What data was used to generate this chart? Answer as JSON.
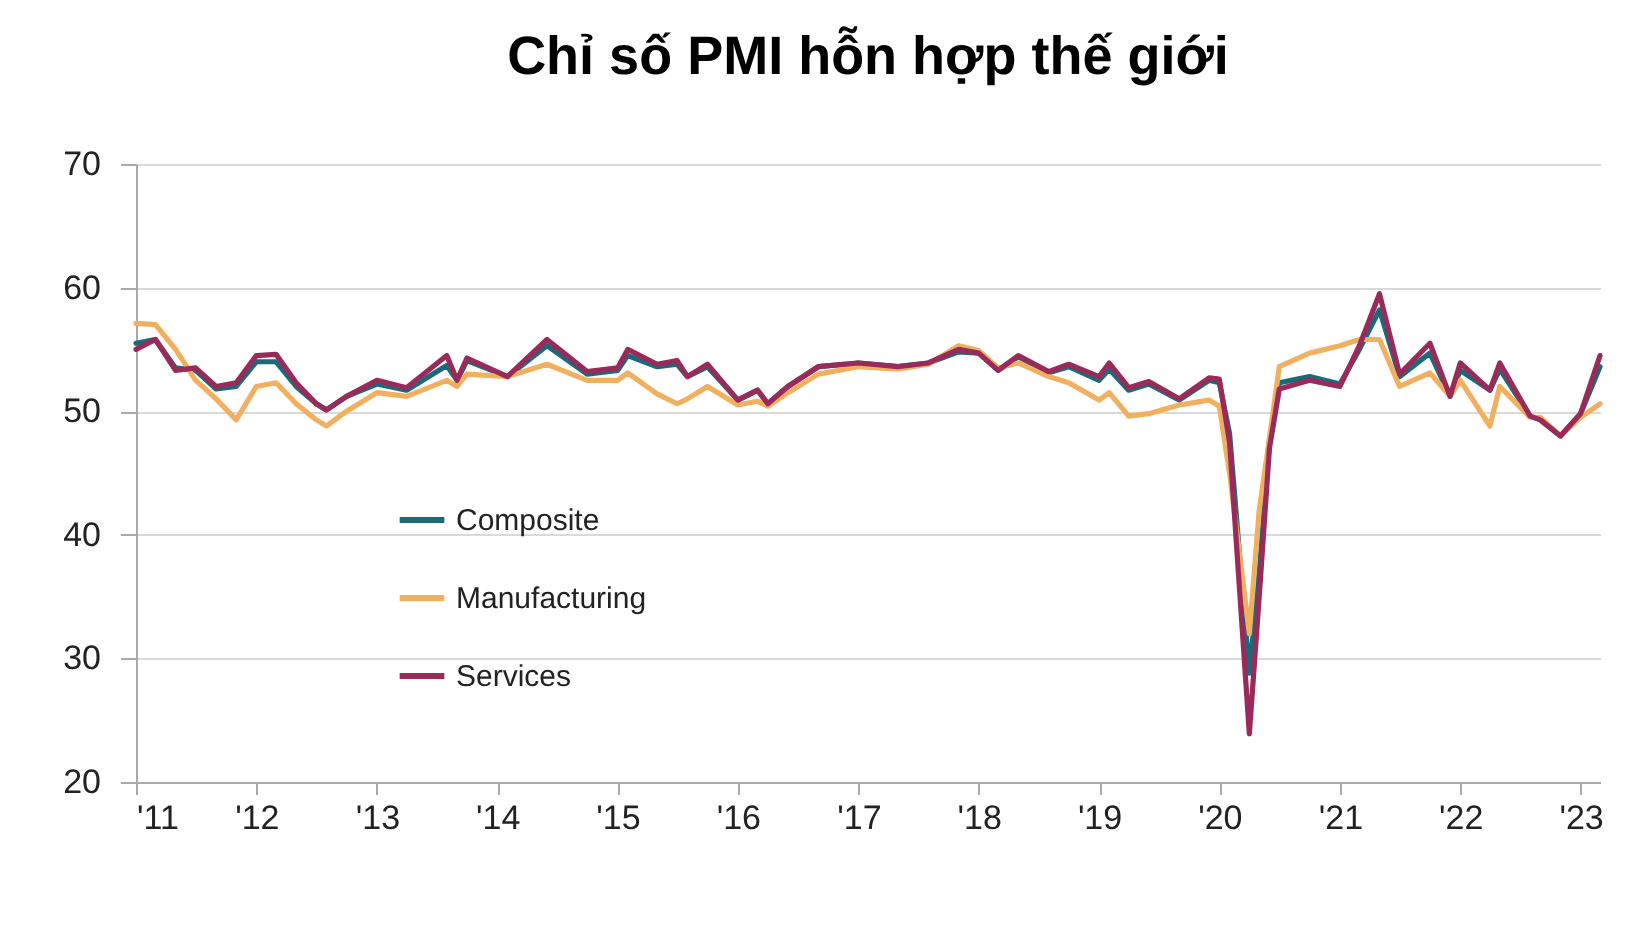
{
  "chart_data": {
    "type": "line",
    "title": "Chỉ số PMI hỗn hợp thế giới",
    "x": [
      "2011-01",
      "2011-03",
      "2011-05",
      "2011-07",
      "2011-09",
      "2011-11",
      "2012-01",
      "2012-03",
      "2012-05",
      "2012-07",
      "2012-08",
      "2012-10",
      "2013-01",
      "2013-04",
      "2013-08",
      "2013-09",
      "2013-10",
      "2014-02",
      "2014-06",
      "2014-10",
      "2015-01",
      "2015-02",
      "2015-05",
      "2015-07",
      "2015-08",
      "2015-10",
      "2016-01",
      "2016-03",
      "2016-04",
      "2016-06",
      "2016-09",
      "2017-01",
      "2017-05",
      "2017-08",
      "2017-11",
      "2018-01",
      "2018-03",
      "2018-05",
      "2018-08",
      "2018-10",
      "2019-01",
      "2019-02",
      "2019-04",
      "2019-06",
      "2019-09",
      "2019-12",
      "2020-01",
      "2020-02",
      "2020-04",
      "2020-05",
      "2020-06",
      "2020-07",
      "2020-10",
      "2021-01",
      "2021-03",
      "2021-05",
      "2021-07",
      "2021-10",
      "2021-12",
      "2022-01",
      "2022-04",
      "2022-05",
      "2022-08",
      "2022-09",
      "2022-11",
      "2023-01",
      "2023-03"
    ],
    "series": [
      {
        "name": "Composite",
        "color": "#1b6a7a",
        "values": [
          55.5,
          55.8,
          53.5,
          53.3,
          51.8,
          52.0,
          54.0,
          54.0,
          52.0,
          50.6,
          50.1,
          51.2,
          52.2,
          51.7,
          53.7,
          52.5,
          54.1,
          52.8,
          55.3,
          53.0,
          53.3,
          54.5,
          53.6,
          53.8,
          52.8,
          53.6,
          50.9,
          51.7,
          50.6,
          52.0,
          53.6,
          53.9,
          53.6,
          53.9,
          54.8,
          54.7,
          53.3,
          54.4,
          53.1,
          53.6,
          52.5,
          53.4,
          51.7,
          52.2,
          50.9,
          52.5,
          52.3,
          48.2,
          28.8,
          37.0,
          47.5,
          52.3,
          52.8,
          52.2,
          55.0,
          58.2,
          52.8,
          54.7,
          51.2,
          53.3,
          51.7,
          53.4,
          49.6,
          49.3,
          48.0,
          49.8,
          53.6
        ]
      },
      {
        "name": "Manufacturing",
        "color": "#f0b060",
        "values": [
          57.1,
          57.0,
          55.0,
          52.5,
          51.0,
          49.3,
          52.0,
          52.3,
          50.6,
          49.3,
          48.8,
          50.0,
          51.5,
          51.2,
          52.5,
          52.0,
          53.0,
          52.8,
          53.8,
          52.5,
          52.5,
          53.1,
          51.4,
          50.6,
          51.0,
          52.0,
          50.5,
          50.8,
          50.4,
          51.5,
          53.0,
          53.6,
          53.4,
          53.8,
          55.3,
          54.9,
          53.5,
          53.9,
          52.8,
          52.3,
          50.9,
          51.5,
          49.6,
          49.8,
          50.5,
          50.9,
          50.4,
          45.0,
          32.0,
          42.0,
          47.8,
          53.6,
          54.7,
          55.3,
          55.8,
          55.8,
          52.0,
          53.1,
          51.2,
          52.5,
          48.8,
          52.0,
          49.5,
          49.5,
          48.0,
          49.5,
          50.6
        ]
      },
      {
        "name": "Services",
        "color": "#9a2a5a",
        "values": [
          55.0,
          55.8,
          53.3,
          53.5,
          52.0,
          52.3,
          54.5,
          54.6,
          52.3,
          50.6,
          50.1,
          51.2,
          52.5,
          51.9,
          54.5,
          52.5,
          54.3,
          52.8,
          55.8,
          53.2,
          53.5,
          55.0,
          53.8,
          54.1,
          52.8,
          53.8,
          50.9,
          51.7,
          50.6,
          52.0,
          53.6,
          53.9,
          53.6,
          53.9,
          55.0,
          54.7,
          53.3,
          54.5,
          53.2,
          53.8,
          52.8,
          53.9,
          51.9,
          52.4,
          51.0,
          52.7,
          52.6,
          47.5,
          23.9,
          35.0,
          47.0,
          51.8,
          52.5,
          52.0,
          55.3,
          59.5,
          53.0,
          55.5,
          51.2,
          53.9,
          51.7,
          53.9,
          49.6,
          49.3,
          48.0,
          49.8,
          54.5
        ]
      }
    ],
    "xlim": [
      "2011-01",
      "2023-03"
    ],
    "xticks": [
      {
        "value": "2011",
        "label": "'11"
      },
      {
        "value": "2012",
        "label": "'12"
      },
      {
        "value": "2013",
        "label": "'13"
      },
      {
        "value": "2014",
        "label": "'14"
      },
      {
        "value": "2015",
        "label": "'15"
      },
      {
        "value": "2016",
        "label": "'16"
      },
      {
        "value": "2017",
        "label": "'17"
      },
      {
        "value": "2018",
        "label": "'18"
      },
      {
        "value": "2019",
        "label": "'19"
      },
      {
        "value": "2020",
        "label": "'20"
      },
      {
        "value": "2021",
        "label": "'21"
      },
      {
        "value": "2022",
        "label": "'22"
      },
      {
        "value": "2023",
        "label": "'23"
      }
    ],
    "ylim": [
      20,
      70
    ],
    "yticks": [
      20,
      30,
      40,
      50,
      60,
      70
    ],
    "grid": "y",
    "legend": "bottom left"
  }
}
